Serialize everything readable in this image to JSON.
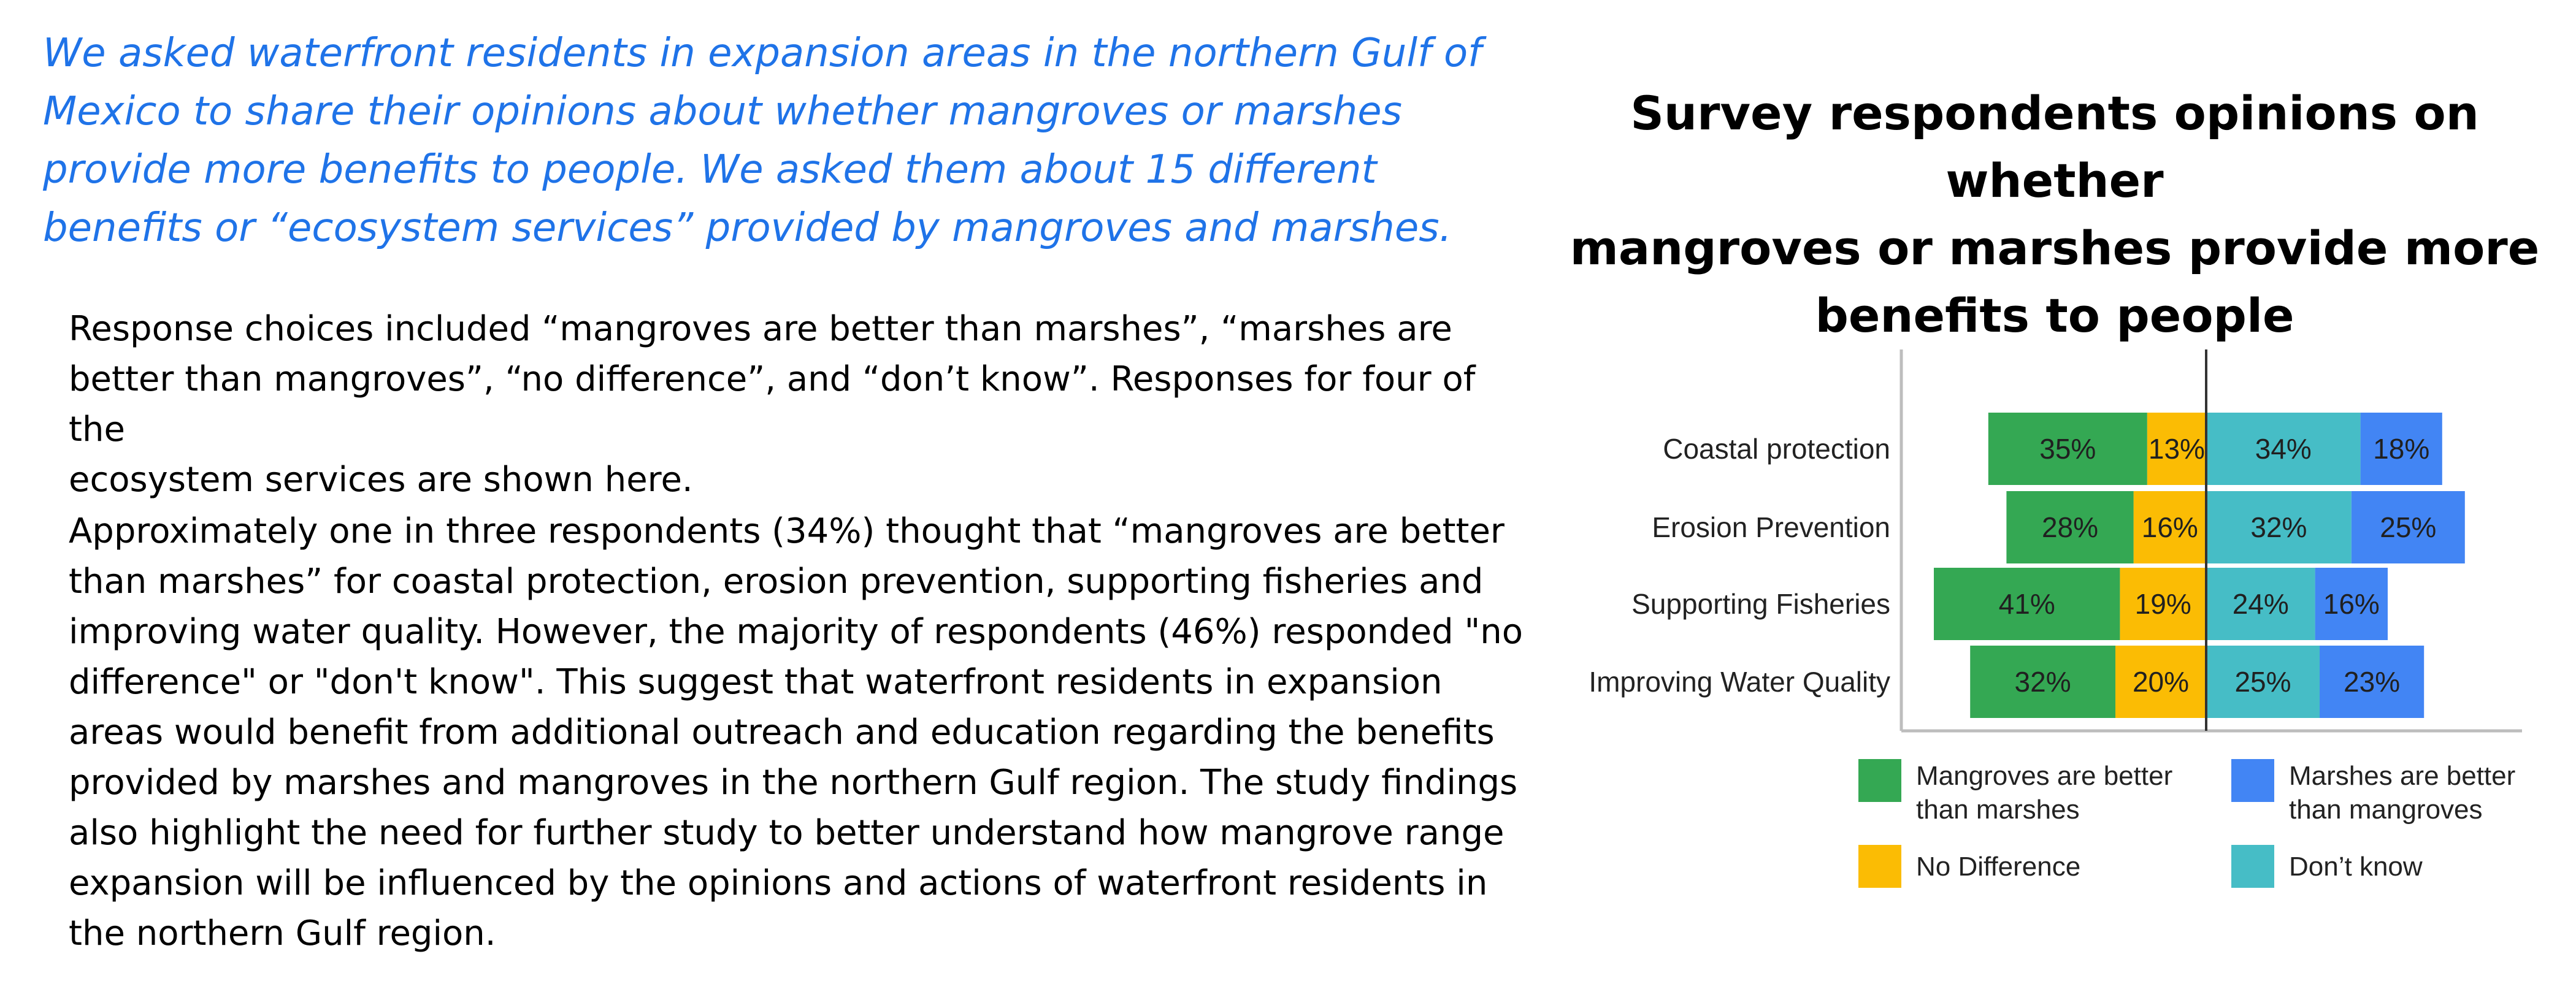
{
  "intro": {
    "lines": [
      "We asked waterfront residents in expansion areas in the northern Gulf of",
      "Mexico to share their opinions about whether mangroves or marshes",
      "provide more benefits to people.  We asked them about 15 different",
      "benefits or “ecosystem services” provided by mangroves and marshes."
    ]
  },
  "paragraph1": {
    "lines": [
      "Response choices included “mangroves are better than marshes”, “marshes are",
      "better than mangroves”, “no difference”, and “don’t know”.  Responses for four of the",
      "ecosystem services are shown here."
    ]
  },
  "paragraph2": {
    "lines": [
      "Approximately one in three respondents (34%) thought that “mangroves are better",
      "than marshes” for coastal protection, erosion prevention, supporting fisheries and",
      "improving water quality.  However, the majority of respondents (46%) responded \"no",
      "difference\" or \"don't know\".  This suggest that waterfront residents in expansion",
      "areas would benefit from additional outreach and education regarding the benefits",
      "provided by marshes and mangroves in the northern Gulf region. The study findings",
      "also highlight the need for further study to better understand how mangrove range",
      "expansion will be influenced by the opinions and actions of waterfront residents in",
      "the northern Gulf region."
    ]
  },
  "chart_data": {
    "type": "bar",
    "orientation": "horizontal",
    "layout": "diverging-stacked",
    "title_lines": [
      "Survey respondents opinions on whether",
      "mangroves or marshes provide more",
      "benefits to people"
    ],
    "categories": [
      "Coastal protection",
      "Erosion Prevention",
      "Supporting Fisheries",
      "Improving Water Quality"
    ],
    "series": [
      {
        "name": "Mangroves are better than marshes",
        "legend_lines": [
          "Mangroves are better",
          "than marshes"
        ],
        "color": "#34a853",
        "side": "left",
        "values": [
          35,
          28,
          41,
          32
        ],
        "labels": [
          "35%",
          "28%",
          "41%",
          "32%"
        ]
      },
      {
        "name": "No Difference",
        "legend_lines": [
          "No Difference"
        ],
        "color": "#fbbc04",
        "side": "left",
        "values": [
          13,
          16,
          19,
          20
        ],
        "labels": [
          "13%",
          "16%",
          "19%",
          "20%"
        ]
      },
      {
        "name": "Don’t know",
        "legend_lines": [
          "Don’t know"
        ],
        "color": "#46bdc6",
        "side": "right",
        "values": [
          34,
          32,
          24,
          25
        ],
        "labels": [
          "34%",
          "32%",
          "24%",
          "25%"
        ]
      },
      {
        "name": "Marshes are better than mangroves",
        "legend_lines": [
          "Marshes are better",
          "than mangroves"
        ],
        "color": "#4285f4",
        "side": "right",
        "values": [
          18,
          25,
          16,
          23
        ],
        "labels": [
          "18%",
          "25%",
          "16%",
          "23%"
        ]
      }
    ],
    "legend_order": [
      0,
      3,
      1,
      2
    ],
    "xlim": [
      -65,
      70
    ],
    "grid": false,
    "legend_position": "bottom"
  }
}
